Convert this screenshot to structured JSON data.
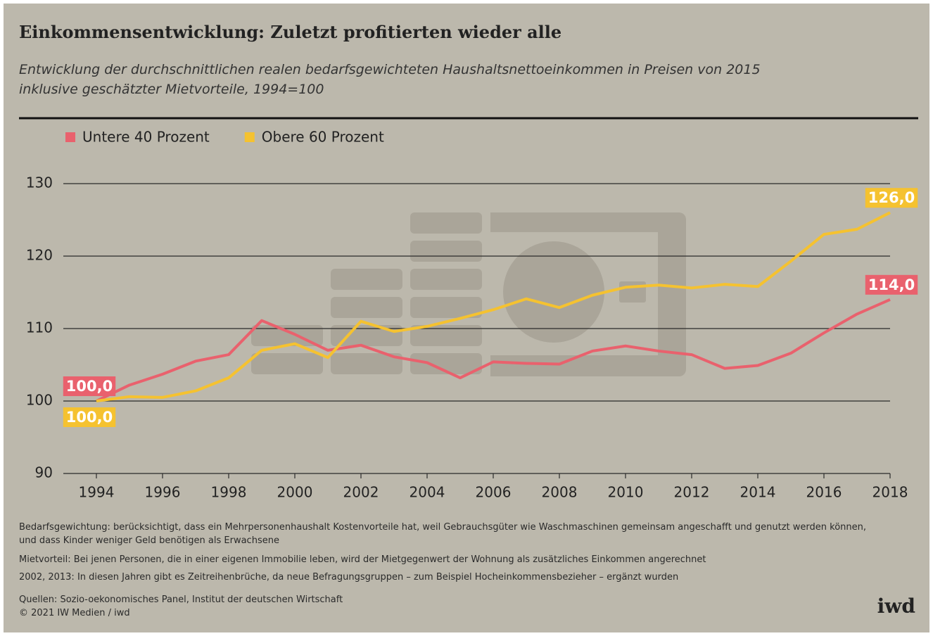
{
  "chart_data": {
    "type": "line",
    "title": "Einkommensentwicklung: Zuletzt profitierten wieder alle",
    "subtitle": "Entwicklung der durchschnittlichen realen bedarfsgewichteten Haushaltsnettoeinkommen in Preisen von 2015 inklusive geschätzter Mietvorteile, 1994=100",
    "x": [
      1994,
      1995,
      1996,
      1997,
      1998,
      1999,
      2000,
      2001,
      2002,
      2003,
      2004,
      2005,
      2006,
      2007,
      2008,
      2009,
      2010,
      2011,
      2012,
      2013,
      2014,
      2015,
      2016,
      2017,
      2018
    ],
    "series": [
      {
        "name": "Untere 40 Prozent",
        "color": "#e9616d",
        "values": [
          100,
          102.2,
          103.7,
          105.5,
          106.4,
          111.1,
          109.2,
          107.0,
          107.7,
          106.1,
          105.3,
          103.2,
          105.4,
          105.2,
          105.1,
          106.9,
          107.6,
          106.9,
          106.4,
          104.5,
          104.9,
          106.6,
          109.4,
          112.0,
          114.0
        ],
        "value_labels": [
          "100,0",
          null,
          null,
          null,
          null,
          null,
          null,
          null,
          null,
          null,
          null,
          null,
          null,
          null,
          null,
          null,
          null,
          null,
          null,
          null,
          null,
          null,
          null,
          null,
          "114,0"
        ]
      },
      {
        "name": "Obere 60 Prozent",
        "color": "#f5c230",
        "values": [
          100,
          100.6,
          100.5,
          101.4,
          103.2,
          107.0,
          107.9,
          106.0,
          111.0,
          109.6,
          110.3,
          111.4,
          112.6,
          114.1,
          112.9,
          114.6,
          115.7,
          116.0,
          115.6,
          116.1,
          115.8,
          119.3,
          123.0,
          123.7,
          126.0
        ],
        "value_labels": [
          "100,0",
          null,
          null,
          null,
          null,
          null,
          null,
          null,
          null,
          null,
          null,
          null,
          null,
          null,
          null,
          null,
          null,
          null,
          null,
          null,
          null,
          null,
          null,
          null,
          "126,0"
        ]
      }
    ],
    "xlim": [
      1993,
      2018
    ],
    "xticks": [
      1994,
      1996,
      1998,
      2000,
      2002,
      2004,
      2006,
      2008,
      2010,
      2012,
      2014,
      2016,
      2018
    ],
    "ylim": [
      90,
      130
    ],
    "yticks": [
      90,
      100,
      110,
      120,
      130
    ],
    "grid": true,
    "legend": "top-left"
  },
  "notes": [
    "Bedarfsgewichtung: berücksichtigt, dass ein Mehrpersonenhaushalt Kostenvorteile hat, weil Gebrauchsgüter wie Waschmaschinen gemeinsam angeschafft und genutzt werden können, und dass Kinder weniger Geld benötigen als Erwachsene",
    "Mietvorteil: Bei jenen Personen, die in einer eigenen Immobilie leben, wird der Mietgegenwert der Wohnung als zusätzliches Einkommen angerechnet",
    "2002, 2013: In diesen Jahren gibt es Zeitreihenbrüche, da neue Befragungsgruppen – zum Beispiel Hocheinkommensbezieher – ergänzt wurden"
  ],
  "source": "Quellen: Sozio-oekonomisches Panel, Institut der deutschen Wirtschaft",
  "copyright": "© 2021 IW Medien / iwd",
  "logo": "iwd"
}
